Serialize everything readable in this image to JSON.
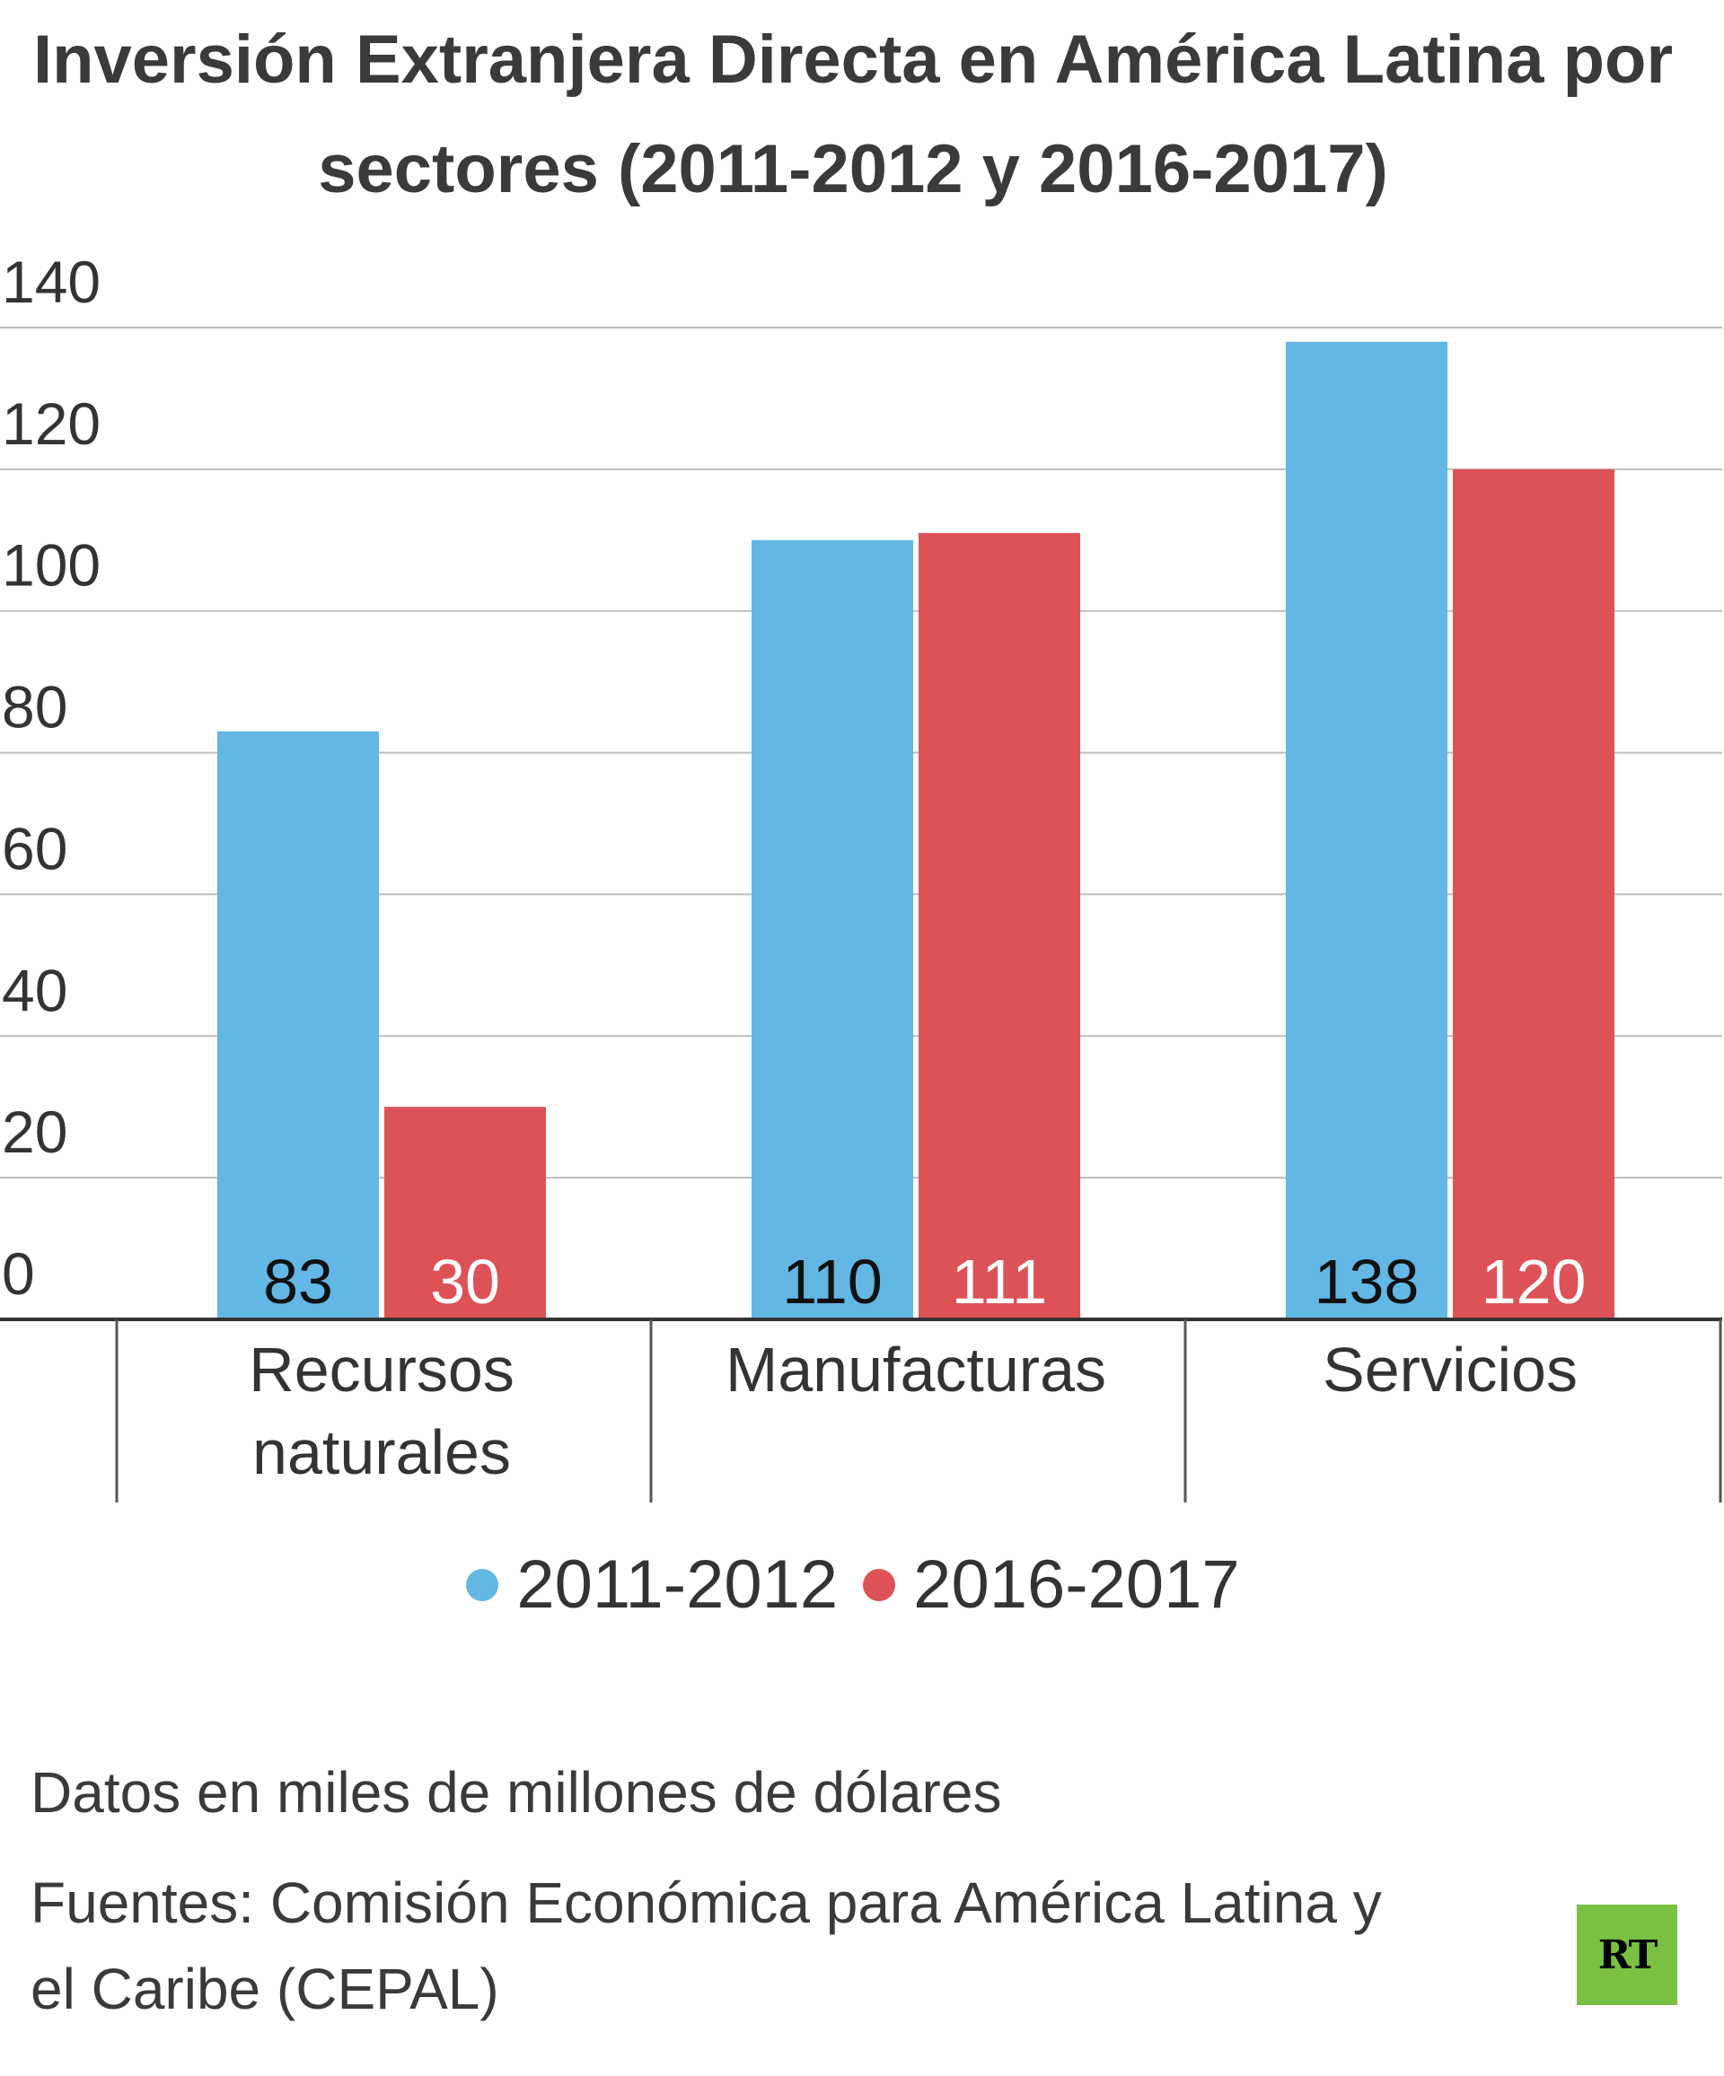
{
  "title": "Inversión Extranjera Directa en América Latina por sectores (2011-2012 y 2016-2017)",
  "chart_data": {
    "type": "bar",
    "categories": [
      "Recursos naturales",
      "Manufacturas",
      "Servicios"
    ],
    "category_lines": [
      [
        "Recursos",
        "naturales"
      ],
      [
        "Manufacturas"
      ],
      [
        "Servicios"
      ]
    ],
    "series": [
      {
        "name": "2011-2012",
        "values": [
          83,
          110,
          138
        ],
        "color": "#62b7e5",
        "label_color": "#111111"
      },
      {
        "name": "2016-2017",
        "values": [
          30,
          111,
          120
        ],
        "color": "#dd5257",
        "label_color": "#ffffff"
      }
    ],
    "ylim": [
      0,
      140
    ],
    "yticks": [
      0,
      20,
      40,
      60,
      80,
      100,
      120,
      140
    ],
    "grid": true,
    "legend_position": "bottom",
    "xlabel": "",
    "ylabel": ""
  },
  "legend": [
    {
      "label": "2011-2012",
      "color": "#62b7e5"
    },
    {
      "label": "2016-2017",
      "color": "#dd5257"
    }
  ],
  "note": "Datos en miles de millones de dólares",
  "source": "Fuentes: Comisión Económica para América Latina y el Caribe (CEPAL)",
  "logo": {
    "text": "RT",
    "color": "#7ac143"
  }
}
